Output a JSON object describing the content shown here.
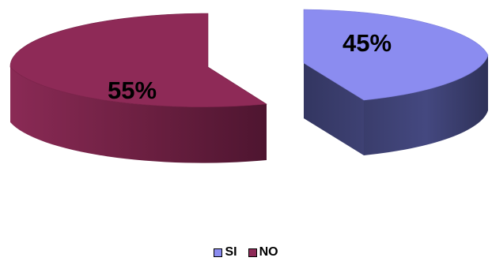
{
  "chart_data": {
    "type": "pie",
    "style": "3d-exploded",
    "categories": [
      "SI",
      "NO"
    ],
    "values": [
      45,
      55
    ],
    "data_labels": [
      "45%",
      "55%"
    ],
    "colors": {
      "SI": {
        "top": "#8b8cf0",
        "side": "#3d4070",
        "edge": "#5a5da6"
      },
      "NO": {
        "top": "#8e2a57",
        "side": "#5c1a37",
        "edge": "#731f45"
      }
    },
    "legend": {
      "placement": "bottom",
      "entries": [
        "SI",
        "NO"
      ]
    },
    "title": "",
    "xlabel": "",
    "ylabel": ""
  }
}
